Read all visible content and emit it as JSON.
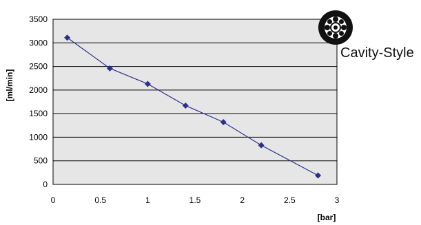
{
  "brand": {
    "label": "Cavity-Style",
    "icon": "gear-logo-icon"
  },
  "colors": {
    "plot_background": "#e6e6e6",
    "series": "#2b2f8f",
    "gridline": "#000000"
  },
  "chart_data": {
    "type": "line",
    "title": "",
    "xlabel": "[bar]",
    "ylabel": "[ml/min]",
    "xlim": [
      0,
      3
    ],
    "ylim": [
      0,
      3500
    ],
    "x_ticks": [
      "0",
      "0.5",
      "1",
      "1.5",
      "2",
      "2.5",
      "3"
    ],
    "x_tick_values": [
      0,
      0.5,
      1,
      1.5,
      2,
      2.5,
      3
    ],
    "y_ticks": [
      "0",
      "500",
      "1000",
      "1500",
      "2000",
      "2500",
      "3000",
      "3500"
    ],
    "y_tick_values": [
      0,
      500,
      1000,
      1500,
      2000,
      2500,
      3000,
      3500
    ],
    "grid": "horizontal",
    "legend": "none",
    "marker": "diamond",
    "series": [
      {
        "x": [
          0.15,
          0.6,
          1.0,
          1.4,
          1.8,
          2.2,
          2.8
        ],
        "y": [
          3110,
          2460,
          2130,
          1670,
          1320,
          830,
          190
        ]
      }
    ]
  }
}
